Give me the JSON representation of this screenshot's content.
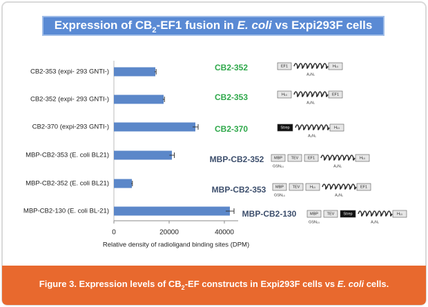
{
  "chart_data": {
    "type": "bar",
    "orientation": "horizontal",
    "title_parts": [
      "Expression of CB",
      "2",
      "-EF1 fusion in ",
      "E. coli",
      " vs Expi293F cells"
    ],
    "categories": [
      "CB2-353 (expi- 293 GNTI-)",
      "CB2-352 (expi- 293 GNTI-)",
      "CB2-370 (expi-293 GNTI-)",
      "MBP-CB2-353 (E. coli BL21)",
      "MBP-CB2-352 (E. coli BL21)",
      "MBP-CB2-130 (E. coli BL-21)"
    ],
    "values": [
      15000,
      18000,
      29500,
      21000,
      6500,
      42000
    ],
    "errors": [
      300,
      300,
      1000,
      900,
      200,
      1500
    ],
    "color": "#5b87c9",
    "xlim": [
      0,
      45000
    ],
    "xticks": [
      0,
      20000,
      40000
    ],
    "x_label": "Relative density of radioligand binding sites (DPM)",
    "constructs": [
      {
        "name": "CB2-352",
        "color": "#2ea84a",
        "parts": [
          {
            "label": "EF1",
            "kind": "box"
          },
          {
            "label": "A₂N₁",
            "kind": "coil"
          },
          {
            "label": "H₁₀",
            "kind": "box"
          }
        ]
      },
      {
        "name": "CB2-353",
        "color": "#2ea84a",
        "parts": [
          {
            "label": "H₁₀",
            "kind": "box"
          },
          {
            "label": "A₂N₁",
            "kind": "coil"
          },
          {
            "label": "EF1",
            "kind": "box"
          }
        ]
      },
      {
        "name": "CB2-370",
        "color": "#2ea84a",
        "parts": [
          {
            "label": "Strep",
            "kind": "dark"
          },
          {
            "label": "A₂N₁",
            "kind": "coil"
          },
          {
            "label": "H₁₀",
            "kind": "box"
          }
        ]
      },
      {
        "name": "MBP-CB2-352",
        "color": "#3c4e6c",
        "parts": [
          {
            "label": "MBP",
            "kind": "box",
            "sub": "GSN₁₀"
          },
          {
            "label": "TEV",
            "kind": "box"
          },
          {
            "label": "EF1",
            "kind": "box"
          },
          {
            "label": "A₂N₁",
            "kind": "coil"
          },
          {
            "label": "H₁₀",
            "kind": "box"
          }
        ]
      },
      {
        "name": "MBP-CB2-353",
        "color": "#3c4e6c",
        "parts": [
          {
            "label": "MBP",
            "kind": "box",
            "sub": "GSN₁₀"
          },
          {
            "label": "TEV",
            "kind": "box"
          },
          {
            "label": "H₁₀",
            "kind": "box"
          },
          {
            "label": "A₂N₁",
            "kind": "coil"
          },
          {
            "label": "EF1",
            "kind": "box"
          }
        ]
      },
      {
        "name": "MBP-CB2-130",
        "color": "#3c4e6c",
        "parts": [
          {
            "label": "MBP",
            "kind": "box",
            "sub": "GSN₁₀"
          },
          {
            "label": "TEV",
            "kind": "box"
          },
          {
            "label": "Strep",
            "kind": "dark"
          },
          {
            "label": "A₂N₁",
            "kind": "coil"
          },
          {
            "label": "H₁₀",
            "kind": "box"
          }
        ]
      }
    ]
  },
  "caption_parts": [
    "Figure 3. Expression levels of CB",
    "2",
    "-EF constructs in Expi293F cells vs ",
    "E. coli",
    " cells."
  ]
}
